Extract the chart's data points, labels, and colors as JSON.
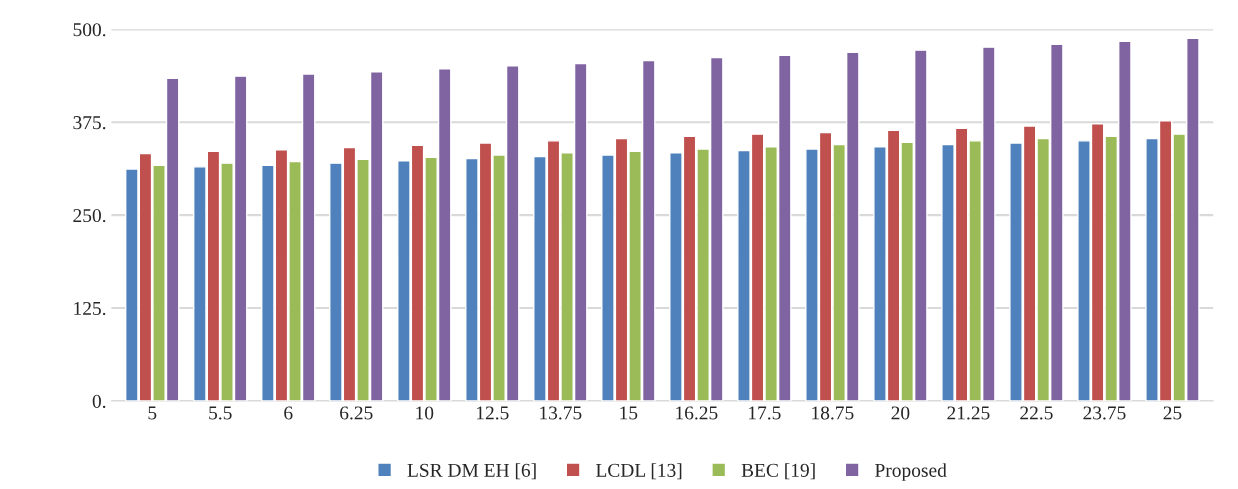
{
  "chart_data": {
    "type": "bar",
    "categories": [
      "5",
      "5.5",
      "6",
      "6.25",
      "10",
      "12.5",
      "13.75",
      "15",
      "16.25",
      "17.5",
      "18.75",
      "20",
      "21.25",
      "22.5",
      "23.75",
      "25"
    ],
    "series": [
      {
        "name": "LSR DM EH [6]",
        "color": "#4f81bd",
        "values": [
          312,
          315,
          317,
          320,
          323,
          326,
          329,
          331,
          334,
          337,
          339,
          342,
          345,
          347,
          350,
          353
        ]
      },
      {
        "name": "LCDL [13]",
        "color": "#c0504d",
        "values": [
          333,
          336,
          338,
          341,
          344,
          347,
          350,
          353,
          356,
          359,
          361,
          364,
          367,
          370,
          373,
          377
        ]
      },
      {
        "name": "BEC [19]",
        "color": "#9bbb59",
        "values": [
          317,
          320,
          322,
          325,
          328,
          331,
          334,
          336,
          339,
          342,
          345,
          348,
          350,
          353,
          356,
          359
        ]
      },
      {
        "name": "Proposed",
        "color": "#8064a2",
        "values": [
          434,
          437,
          440,
          443,
          447,
          451,
          454,
          458,
          462,
          465,
          469,
          472,
          476,
          480,
          484,
          488
        ]
      }
    ],
    "ylim": [
      0,
      500
    ],
    "yticks": [
      {
        "value": 0,
        "label": "0."
      },
      {
        "value": 125,
        "label": "125."
      },
      {
        "value": 250,
        "label": "250."
      },
      {
        "value": 375,
        "label": "375."
      },
      {
        "value": 500,
        "label": "500."
      }
    ],
    "grid": "y",
    "legend": "bottom"
  }
}
